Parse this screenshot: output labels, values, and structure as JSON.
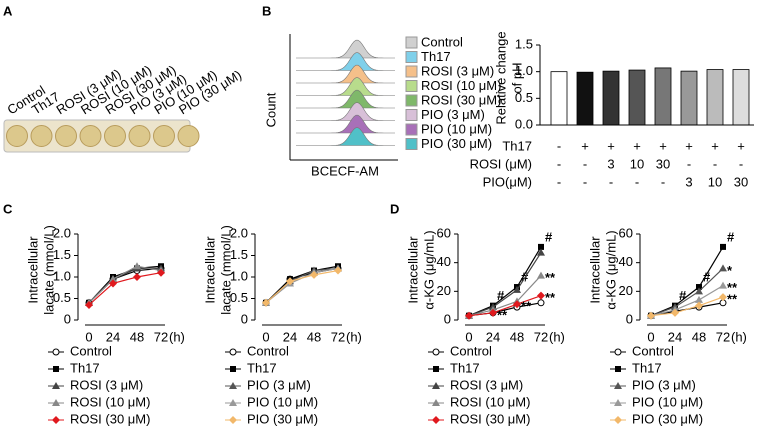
{
  "panel_labels": [
    "A",
    "B",
    "C",
    "D"
  ],
  "chart_data": [
    {
      "type": "wells",
      "well_labels": [
        "Control",
        "Th17",
        "ROSI (3 μM)",
        "ROSI (10 μM)",
        "ROSI (30 μM)",
        "PIO (3 μM)",
        "PIO (10 μM)",
        "PIO (30 μM)"
      ],
      "well_color": "#dcc88c"
    },
    {
      "type": "ridge",
      "xlabel": "BCECF-AM",
      "ylabel": "Count",
      "series": [
        {
          "name": "Control",
          "color": "#d0d0d0"
        },
        {
          "name": "Th17",
          "color": "#7fd0ea"
        },
        {
          "name": "ROSI (3 μM)",
          "color": "#f5c08a"
        },
        {
          "name": "ROSI (10 μM)",
          "color": "#b8dc8c"
        },
        {
          "name": "ROSI (30 μM)",
          "color": "#7fb86a"
        },
        {
          "name": "PIO (3 μM)",
          "color": "#d8c0d8"
        },
        {
          "name": "PIO (10 μM)",
          "color": "#a870b8"
        },
        {
          "name": "PIO (30 μM)",
          "color": "#50c0c8"
        }
      ]
    },
    {
      "type": "bar",
      "ylabel": [
        "Relative change",
        "of pH"
      ],
      "ylim": [
        0,
        1.5
      ],
      "yticks": [
        {
          "value": 0,
          "label": "0.0"
        },
        0.5,
        {
          "value": 1,
          "label": "1.0"
        },
        1.5
      ],
      "values": [
        1.0,
        0.99,
        1.01,
        1.03,
        1.07,
        1.01,
        1.04,
        1.04
      ],
      "colors": [
        "#ffffff",
        "#111111",
        "#333333",
        "#555555",
        "#777777",
        "#999999",
        "#bbbbbb",
        "#dddddd"
      ],
      "condition_table": [
        {
          "label": "Th17",
          "cells": [
            "-",
            "+",
            "+",
            "+",
            "+",
            "+",
            "+",
            "+"
          ]
        },
        {
          "label": "ROSI (μM)",
          "cells": [
            "-",
            "-",
            "3",
            "10",
            "30",
            "-",
            "-",
            "-"
          ]
        },
        {
          "label": "PIO(μM)",
          "cells": [
            "-",
            "-",
            "-",
            "-",
            "-",
            "3",
            "10",
            "30"
          ]
        }
      ]
    },
    {
      "type": "line",
      "ylabel": [
        "Intracellular",
        "lacate (mmol/L)"
      ],
      "categories": [
        "0",
        "24",
        "48",
        "72"
      ],
      "x_unit": "(h)",
      "ylim": [
        0,
        2
      ],
      "yticks": [
        0,
        0.5,
        {
          "value": 1,
          "label": "1.0"
        },
        1.5,
        {
          "value": 2,
          "label": "2.0"
        }
      ],
      "series": [
        {
          "name": "Control",
          "color": "#000000",
          "marker": "circle",
          "values": [
            0.4,
            0.95,
            1.15,
            1.2
          ]
        },
        {
          "name": "Th17",
          "color": "#000000",
          "marker": "square",
          "values": [
            0.4,
            1.0,
            1.2,
            1.25
          ]
        },
        {
          "name": "ROSI (3 μM)",
          "color": "#444444",
          "marker": "triangle",
          "values": [
            0.4,
            0.95,
            1.2,
            1.2
          ]
        },
        {
          "name": "ROSI (10 μM)",
          "color": "#888888",
          "marker": "triangle",
          "values": [
            0.4,
            0.95,
            1.25,
            1.15
          ]
        },
        {
          "name": "ROSI (30 μM)",
          "color": "#e0191e",
          "marker": "diamond",
          "values": [
            0.35,
            0.85,
            1.0,
            1.1
          ]
        }
      ]
    },
    {
      "type": "line",
      "ylabel": [
        "Intracellular",
        "lacate (mmol/L)"
      ],
      "categories": [
        "0",
        "24",
        "48",
        "72"
      ],
      "x_unit": "(h)",
      "ylim": [
        0,
        2
      ],
      "yticks": [
        0,
        0.5,
        {
          "value": 1,
          "label": "1.0"
        },
        1.5,
        {
          "value": 2,
          "label": "2.0"
        }
      ],
      "series": [
        {
          "name": "Control",
          "color": "#000000",
          "marker": "circle",
          "values": [
            0.4,
            0.95,
            1.1,
            1.2
          ]
        },
        {
          "name": "Th17",
          "color": "#000000",
          "marker": "square",
          "values": [
            0.4,
            0.95,
            1.15,
            1.25
          ]
        },
        {
          "name": "PIO (3 μM)",
          "color": "#555555",
          "marker": "triangle",
          "values": [
            0.4,
            0.9,
            1.15,
            1.2
          ]
        },
        {
          "name": "PIO (10 μM)",
          "color": "#999999",
          "marker": "triangle",
          "values": [
            0.4,
            0.85,
            1.1,
            1.2
          ]
        },
        {
          "name": "PIO (30 μM)",
          "color": "#f2b86a",
          "marker": "diamond",
          "values": [
            0.4,
            0.9,
            1.05,
            1.15
          ]
        }
      ]
    },
    {
      "type": "line",
      "ylabel": [
        "Intracellular",
        "α-KG (μg/mL)"
      ],
      "categories": [
        "0",
        "24",
        "48",
        "72"
      ],
      "x_unit": "(h)",
      "ylim": [
        0,
        60
      ],
      "yticks": [
        0,
        20,
        40,
        60
      ],
      "series": [
        {
          "name": "Control",
          "color": "#000000",
          "marker": "circle",
          "values": [
            3,
            5,
            9,
            12
          ]
        },
        {
          "name": "Th17",
          "color": "#000000",
          "marker": "square",
          "values": [
            3,
            10,
            23,
            51
          ],
          "annotations": [
            null,
            "#",
            "#",
            "#"
          ]
        },
        {
          "name": "ROSI (3 μM)",
          "color": "#444444",
          "marker": "triangle",
          "values": [
            3,
            9,
            21,
            47
          ]
        },
        {
          "name": "ROSI (10 μM)",
          "color": "#888888",
          "marker": "triangle",
          "values": [
            3,
            7,
            13,
            31
          ],
          "annotations": [
            null,
            null,
            null,
            "**"
          ]
        },
        {
          "name": "ROSI (30 μM)",
          "color": "#e0191e",
          "marker": "diamond",
          "values": [
            3,
            5,
            11,
            17
          ],
          "annotations": [
            null,
            "**",
            "**",
            "**"
          ]
        }
      ]
    },
    {
      "type": "line",
      "ylabel": [
        "Intracellular",
        "α-KG (μg/mL)"
      ],
      "categories": [
        "0",
        "24",
        "48",
        "72"
      ],
      "x_unit": "(h)",
      "ylim": [
        0,
        60
      ],
      "yticks": [
        0,
        20,
        40,
        60
      ],
      "series": [
        {
          "name": "Control",
          "color": "#000000",
          "marker": "circle",
          "values": [
            3,
            6,
            9,
            12
          ]
        },
        {
          "name": "Th17",
          "color": "#000000",
          "marker": "square",
          "values": [
            3,
            10,
            23,
            51
          ],
          "annotations": [
            null,
            "#",
            "#",
            "#"
          ]
        },
        {
          "name": "PIO (3 μM)",
          "color": "#555555",
          "marker": "triangle",
          "values": [
            3,
            9,
            20,
            36
          ],
          "annotations": [
            null,
            null,
            null,
            "*"
          ]
        },
        {
          "name": "PIO (10 μM)",
          "color": "#999999",
          "marker": "triangle",
          "values": [
            3,
            7,
            14,
            24
          ],
          "annotations": [
            null,
            null,
            null,
            "**"
          ]
        },
        {
          "name": "PIO (30 μM)",
          "color": "#f2b86a",
          "marker": "diamond",
          "values": [
            3,
            5,
            10,
            16
          ],
          "annotations": [
            null,
            null,
            null,
            "**"
          ]
        }
      ]
    }
  ]
}
